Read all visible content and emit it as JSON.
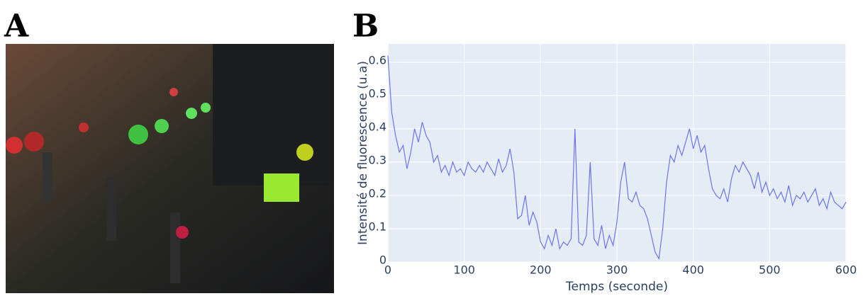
{
  "panel_labels": [
    "A",
    "B"
  ],
  "chart_data": {
    "type": "line",
    "xlabel": "Temps (seconde)",
    "ylabel": "Intensité de fluorescence (u.a)",
    "x": [
      0,
      5,
      10,
      15,
      20,
      25,
      30,
      35,
      40,
      45,
      50,
      55,
      60,
      65,
      70,
      75,
      80,
      85,
      90,
      95,
      100,
      105,
      110,
      115,
      120,
      125,
      130,
      135,
      140,
      145,
      150,
      155,
      160,
      165,
      170,
      175,
      180,
      185,
      190,
      195,
      200,
      205,
      210,
      215,
      220,
      225,
      230,
      235,
      240,
      245,
      250,
      255,
      260,
      265,
      270,
      275,
      280,
      285,
      290,
      295,
      300,
      305,
      310,
      315,
      320,
      325,
      330,
      335,
      340,
      345,
      350,
      355,
      360,
      365,
      370,
      375,
      380,
      385,
      390,
      395,
      400,
      405,
      410,
      415,
      420,
      425,
      430,
      435,
      440,
      445,
      450,
      455,
      460,
      465,
      470,
      475,
      480,
      485,
      490,
      495,
      500,
      505,
      510,
      515,
      520,
      525,
      530,
      535,
      540,
      545,
      550,
      555,
      560,
      565,
      570,
      575,
      580,
      585,
      590,
      595,
      600
    ],
    "series": [
      {
        "color": "#6b74f0",
        "values": [
          0.62,
          0.45,
          0.38,
          0.33,
          0.35,
          0.28,
          0.33,
          0.4,
          0.36,
          0.42,
          0.38,
          0.36,
          0.3,
          0.32,
          0.27,
          0.29,
          0.26,
          0.3,
          0.27,
          0.28,
          0.26,
          0.3,
          0.28,
          0.27,
          0.29,
          0.27,
          0.3,
          0.28,
          0.26,
          0.31,
          0.27,
          0.29,
          0.34,
          0.27,
          0.13,
          0.14,
          0.2,
          0.11,
          0.15,
          0.12,
          0.06,
          0.04,
          0.08,
          0.05,
          0.1,
          0.04,
          0.06,
          0.05,
          0.07,
          0.4,
          0.06,
          0.05,
          0.08,
          0.3,
          0.07,
          0.05,
          0.11,
          0.04,
          0.08,
          0.05,
          0.12,
          0.24,
          0.3,
          0.19,
          0.18,
          0.21,
          0.17,
          0.16,
          0.13,
          0.08,
          0.03,
          0.01,
          0.1,
          0.24,
          0.32,
          0.3,
          0.35,
          0.32,
          0.36,
          0.4,
          0.34,
          0.38,
          0.33,
          0.35,
          0.28,
          0.22,
          0.2,
          0.19,
          0.22,
          0.18,
          0.25,
          0.29,
          0.27,
          0.3,
          0.28,
          0.26,
          0.22,
          0.27,
          0.21,
          0.24,
          0.2,
          0.22,
          0.19,
          0.21,
          0.18,
          0.23,
          0.17,
          0.2,
          0.19,
          0.21,
          0.18,
          0.2,
          0.22,
          0.17,
          0.19,
          0.16,
          0.21,
          0.18,
          0.17,
          0.16,
          0.18
        ]
      }
    ],
    "xlim": [
      0,
      600
    ],
    "xticks": [
      0,
      100,
      200,
      300,
      400,
      500,
      600
    ],
    "ylim": [
      0,
      0.655
    ],
    "yticks": [
      0,
      0.1,
      0.2,
      0.3,
      0.4,
      0.5,
      0.6
    ],
    "grid": true,
    "background": "#e5ecf6"
  }
}
